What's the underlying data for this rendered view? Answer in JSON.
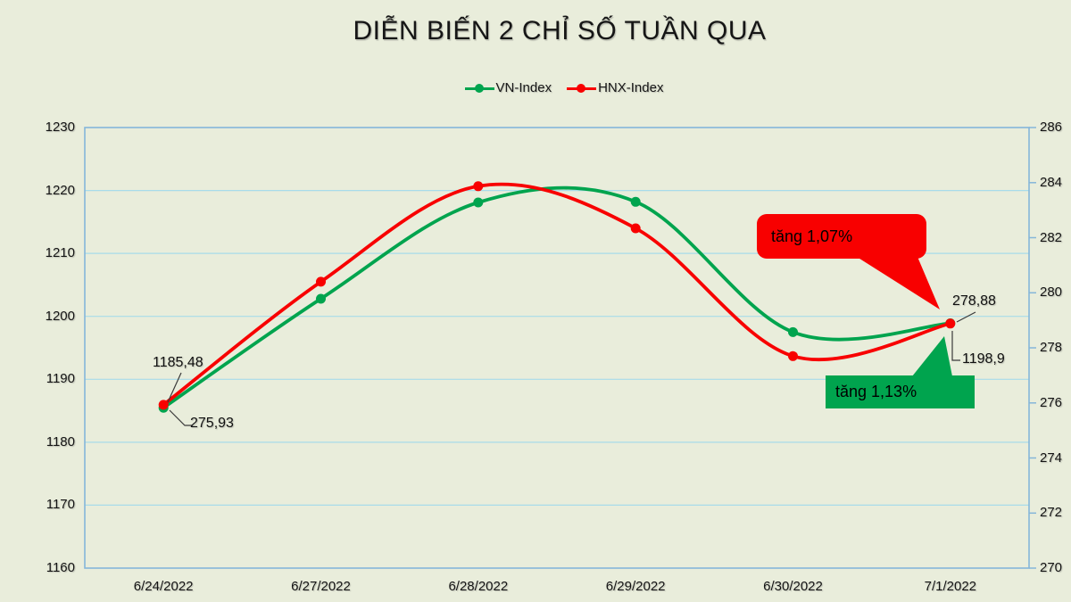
{
  "title": "DIỄN BIẾN 2 CHỈ SỐ TUẦN QUA",
  "legend": {
    "items": [
      {
        "label": "VN-Index",
        "color": "#00A44E"
      },
      {
        "label": "HNX-Index",
        "color": "#F80000"
      }
    ]
  },
  "chart_data": {
    "type": "line",
    "smooth": true,
    "title": "DIỄN BIẾN 2 CHỈ SỐ TUẦN QUA",
    "categories": [
      "6/24/2022",
      "6/27/2022",
      "6/28/2022",
      "6/29/2022",
      "6/30/2022",
      "7/1/2022"
    ],
    "series": [
      {
        "name": "VN-Index",
        "axis": "left",
        "color": "#00A44E",
        "values": [
          1185.48,
          1202.8,
          1218.1,
          1218.2,
          1197.5,
          1198.9
        ]
      },
      {
        "name": "HNX-Index",
        "axis": "right",
        "color": "#F80000",
        "values": [
          275.93,
          280.4,
          283.87,
          282.34,
          277.7,
          278.88
        ]
      }
    ],
    "left_axis": {
      "min": 1160,
      "max": 1230,
      "step": 10,
      "ticks": [
        "1230",
        "1220",
        "1210",
        "1200",
        "1190",
        "1180",
        "1170",
        "1160"
      ]
    },
    "right_axis": {
      "min": 270,
      "max": 286,
      "step": 2,
      "ticks": [
        "286",
        "284",
        "282",
        "280",
        "278",
        "276",
        "274",
        "272",
        "270"
      ]
    },
    "grid": true,
    "legend_position": "top",
    "point_labels": [
      {
        "series": 0,
        "point": 0,
        "text": "1185,48"
      },
      {
        "series": 1,
        "point": 0,
        "text": "275,93"
      },
      {
        "series": 1,
        "point": 5,
        "text": "278,88"
      },
      {
        "series": 0,
        "point": 5,
        "text": "1198,9"
      }
    ],
    "annotations": [
      {
        "id": "hnx-change",
        "text": "tăng 1,07%",
        "fill": "#F80000",
        "text_color": "#000000"
      },
      {
        "id": "vn-change",
        "text": "tăng 1,13%",
        "fill": "#00A44E",
        "text_color": "#000000"
      }
    ],
    "colors": {
      "background": "#E9EDDB",
      "gridline": "#A8DCEA",
      "plot_border": "#85B6D9",
      "leader_line": "#3A3A3A",
      "text": "#141414"
    }
  }
}
